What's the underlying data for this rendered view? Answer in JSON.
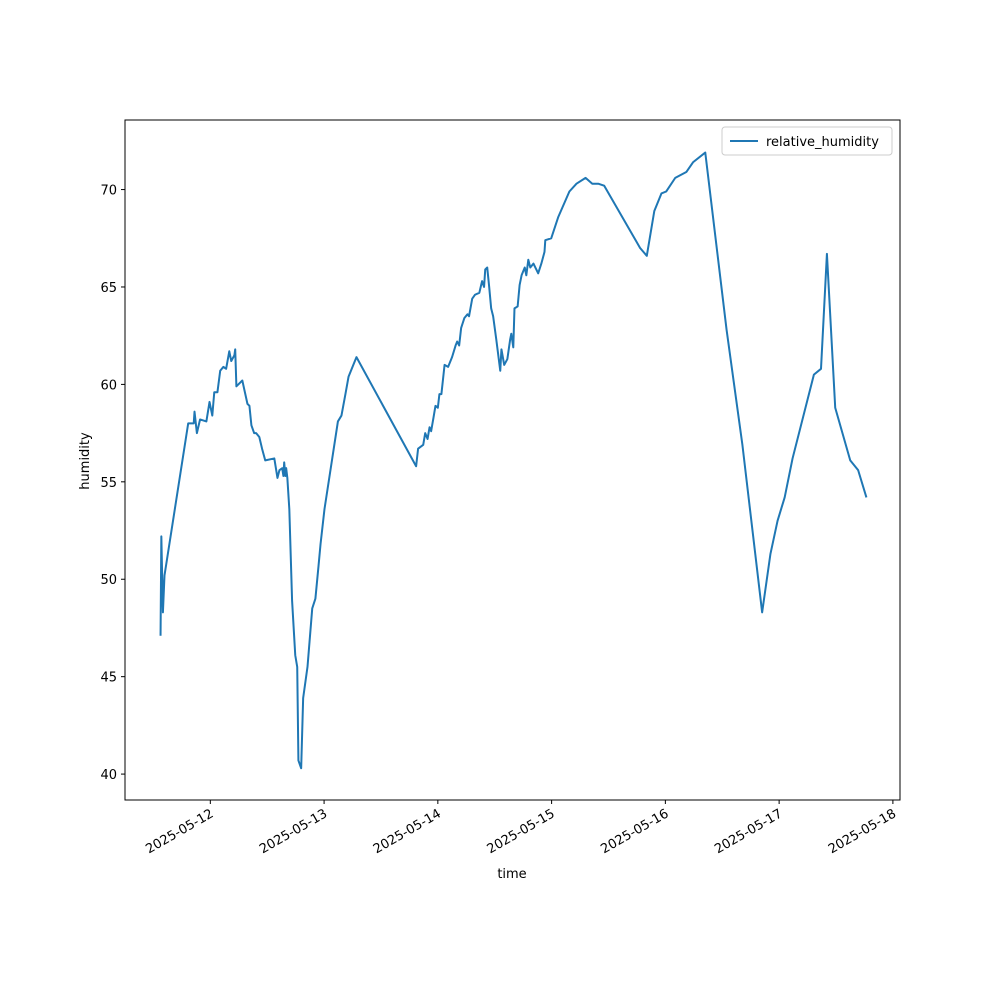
{
  "chart_data": {
    "type": "line",
    "x_label": "time",
    "y_label": "humidity",
    "x": [
      "2025-05-11 13:30",
      "2025-05-11 13:40",
      "2025-05-11 14:00",
      "2025-05-11 14:20",
      "2025-05-11 19:20",
      "2025-05-11 20:30",
      "2025-05-11 20:40",
      "2025-05-11 21:10",
      "2025-05-11 21:50",
      "2025-05-11 23:10",
      "2025-05-11 23:50",
      "2025-05-12 00:25",
      "2025-05-12 00:50",
      "2025-05-12 01:30",
      "2025-05-12 02:05",
      "2025-05-12 02:45",
      "2025-05-12 03:20",
      "2025-05-12 04:00",
      "2025-05-12 04:25",
      "2025-05-12 05:05",
      "2025-05-12 05:15",
      "2025-05-12 05:30",
      "2025-05-12 06:45",
      "2025-05-12 07:50",
      "2025-05-12 08:15",
      "2025-05-12 08:40",
      "2025-05-12 09:15",
      "2025-05-12 09:40",
      "2025-05-12 10:20",
      "2025-05-12 10:55",
      "2025-05-12 11:35",
      "2025-05-12 13:30",
      "2025-05-12 14:10",
      "2025-05-12 14:35",
      "2025-05-12 15:10",
      "2025-05-12 15:25",
      "2025-05-12 15:35",
      "2025-05-12 15:50",
      "2025-05-12 16:00",
      "2025-05-12 16:15",
      "2025-05-12 16:40",
      "2025-05-12 17:15",
      "2025-05-12 17:55",
      "2025-05-12 18:20",
      "2025-05-12 18:35",
      "2025-05-12 19:10",
      "2025-05-12 19:35",
      "2025-05-12 20:30",
      "2025-05-12 21:30",
      "2025-05-12 22:10",
      "2025-05-12 22:50",
      "2025-05-12 23:15",
      "2025-05-13 00:05",
      "2025-05-13 02:55",
      "2025-05-13 03:40",
      "2025-05-13 04:30",
      "2025-05-13 05:10",
      "2025-05-13 06:50",
      "2025-05-13 19:25",
      "2025-05-13 19:50",
      "2025-05-13 20:55",
      "2025-05-13 21:20",
      "2025-05-13 21:50",
      "2025-05-13 22:15",
      "2025-05-13 22:35",
      "2025-05-13 23:05",
      "2025-05-13 23:30",
      "2025-05-14 00:00",
      "2025-05-14 00:20",
      "2025-05-14 00:45",
      "2025-05-14 01:25",
      "2025-05-14 02:10",
      "2025-05-14 03:00",
      "2025-05-14 03:45",
      "2025-05-14 04:05",
      "2025-05-14 04:30",
      "2025-05-14 04:55",
      "2025-05-14 05:35",
      "2025-05-14 06:15",
      "2025-05-14 06:35",
      "2025-05-14 07:15",
      "2025-05-14 07:50",
      "2025-05-14 08:45",
      "2025-05-14 09:20",
      "2025-05-14 09:45",
      "2025-05-14 10:00",
      "2025-05-14 10:25",
      "2025-05-14 10:50",
      "2025-05-14 11:15",
      "2025-05-14 11:40",
      "2025-05-14 12:20",
      "2025-05-14 13:10",
      "2025-05-14 13:25",
      "2025-05-14 14:00",
      "2025-05-14 14:40",
      "2025-05-14 15:15",
      "2025-05-14 15:30",
      "2025-05-14 15:55",
      "2025-05-14 16:10",
      "2025-05-14 16:50",
      "2025-05-14 17:15",
      "2025-05-14 17:40",
      "2025-05-14 18:20",
      "2025-05-14 18:40",
      "2025-05-14 19:05",
      "2025-05-14 19:30",
      "2025-05-14 20:10",
      "2025-05-14 21:10",
      "2025-05-14 21:50",
      "2025-05-14 22:30",
      "2025-05-14 22:40",
      "2025-05-14 23:55",
      "2025-05-15 01:25",
      "2025-05-15 03:45",
      "2025-05-15 05:15",
      "2025-05-15 07:10",
      "2025-05-15 08:35",
      "2025-05-15 09:50",
      "2025-05-15 11:05",
      "2025-05-15 18:40",
      "2025-05-15 20:05",
      "2025-05-15 21:40",
      "2025-05-15 23:10",
      "2025-05-16 00:10",
      "2025-05-16 02:05",
      "2025-05-16 04:25",
      "2025-05-16 05:50",
      "2025-05-16 08:25",
      "2025-05-16 12:55",
      "2025-05-16 16:15",
      "2025-05-16 20:25",
      "2025-05-16 22:10",
      "2025-05-16 23:40",
      "2025-05-17 01:10",
      "2025-05-17 02:50",
      "2025-05-17 07:20",
      "2025-05-17 08:50",
      "2025-05-17 10:05",
      "2025-05-17 11:50",
      "2025-05-17 15:00",
      "2025-05-17 16:40",
      "2025-05-17 18:25"
    ],
    "series": [
      {
        "name": "relative_humidity",
        "color": "#1f77b4",
        "values": [
          47.1,
          52.2,
          48.3,
          50.2,
          58.0,
          58.0,
          58.6,
          57.5,
          58.2,
          58.1,
          59.1,
          58.4,
          59.6,
          59.6,
          60.7,
          60.9,
          60.8,
          61.7,
          61.2,
          61.5,
          61.8,
          59.9,
          60.2,
          59.0,
          58.9,
          57.9,
          57.5,
          57.5,
          57.3,
          56.7,
          56.1,
          56.2,
          55.2,
          55.6,
          55.7,
          55.3,
          56.0,
          55.3,
          55.7,
          55.2,
          53.6,
          48.9,
          46.1,
          45.5,
          40.7,
          40.3,
          43.9,
          45.5,
          48.5,
          49.0,
          50.7,
          51.8,
          53.6,
          58.1,
          58.4,
          59.5,
          60.4,
          61.4,
          55.8,
          56.7,
          56.9,
          57.5,
          57.2,
          57.8,
          57.6,
          58.3,
          58.9,
          58.8,
          59.5,
          59.5,
          61.0,
          60.9,
          61.4,
          62.0,
          62.2,
          62.0,
          62.9,
          63.4,
          63.6,
          63.5,
          64.4,
          64.6,
          64.7,
          65.3,
          65.0,
          65.9,
          66.0,
          65.0,
          63.9,
          63.5,
          62.3,
          60.7,
          61.8,
          61.0,
          61.3,
          62.3,
          62.6,
          61.9,
          63.9,
          64.0,
          65.1,
          65.6,
          66.0,
          65.6,
          66.4,
          66.0,
          66.2,
          65.7,
          66.2,
          66.8,
          67.4,
          67.5,
          68.6,
          69.9,
          70.3,
          70.6,
          70.3,
          70.3,
          70.2,
          67.0,
          66.6,
          68.9,
          69.8,
          69.9,
          70.6,
          70.9,
          71.4,
          71.9,
          62.8,
          56.9,
          48.3,
          51.3,
          53.0,
          54.2,
          56.2,
          60.5,
          60.8,
          66.7,
          58.8,
          56.1,
          55.6,
          54.2
        ]
      }
    ],
    "xlim": [
      "2025-05-11 06:00",
      "2025-05-18 01:30"
    ],
    "xticks": [
      "2025-05-12",
      "2025-05-13",
      "2025-05-14",
      "2025-05-15",
      "2025-05-16",
      "2025-05-17",
      "2025-05-18"
    ],
    "ylim": [
      38.67,
      73.57
    ],
    "yticks": [
      40,
      45,
      50,
      55,
      60,
      65,
      70
    ],
    "legend": "upper right"
  }
}
